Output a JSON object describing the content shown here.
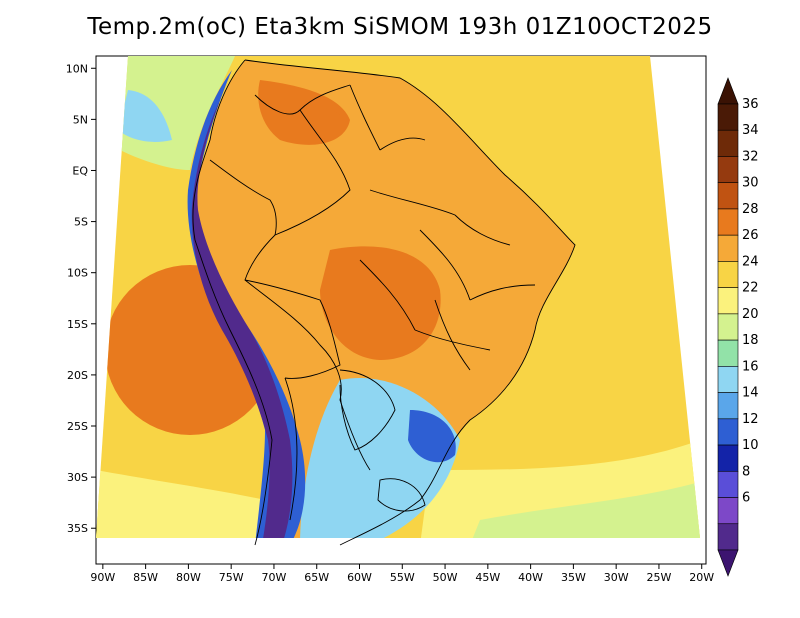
{
  "title": "Temp.2m(oC) Eta3km SiSMOM 193h 01Z10OCT2025",
  "map": {
    "lat_ticks": [
      "10N",
      "5N",
      "EQ",
      "5S",
      "10S",
      "15S",
      "20S",
      "25S",
      "30S",
      "35S"
    ],
    "lat_values": [
      10,
      5,
      0,
      -5,
      -10,
      -15,
      -20,
      -25,
      -30,
      -35
    ],
    "lon_ticks": [
      "90W",
      "85W",
      "80W",
      "75W",
      "70W",
      "65W",
      "60W",
      "55W",
      "50W",
      "45W",
      "40W",
      "35W",
      "30W",
      "25W",
      "20W"
    ],
    "lon_values": [
      -90,
      -85,
      -80,
      -75,
      -70,
      -65,
      -60,
      -55,
      -50,
      -45,
      -40,
      -35,
      -30,
      -25,
      -20
    ],
    "extent": {
      "lon_min": -90.8,
      "lon_max": -19.5,
      "lat_min": -38.5,
      "lat_max": 11.2
    }
  },
  "colorbar": {
    "labels": [
      "36",
      "34",
      "32",
      "30",
      "28",
      "26",
      "24",
      "22",
      "20",
      "18",
      "16",
      "14",
      "12",
      "10",
      "8",
      "6"
    ],
    "colors": [
      "#4a1a06",
      "#6e2a08",
      "#953a0f",
      "#c05312",
      "#e87a1e",
      "#f5a938",
      "#f8d445",
      "#fbf27d",
      "#d4f28f",
      "#92e2a8",
      "#8fd6f2",
      "#5aa6ea",
      "#2e5fd3",
      "#1323a8",
      "#5a4ed8",
      "#7d48c8",
      "#512a8c"
    ],
    "under_color": "#3c1470",
    "over_color": "#3a1204"
  },
  "colors": {
    "ocean_warm": "#f5a938",
    "ocean_hot": "#e87a1e",
    "ocean_mild": "#f8d445",
    "ocean_cool": "#fbf27d",
    "ocean_cold": "#d4f28f",
    "land_hot": "#e87a1e",
    "land_warm": "#f5a938",
    "andes_cold": "#512a8c",
    "andes_blue": "#2e5fd3",
    "south_cool": "#8fd6f2",
    "boundary": "#000000"
  }
}
